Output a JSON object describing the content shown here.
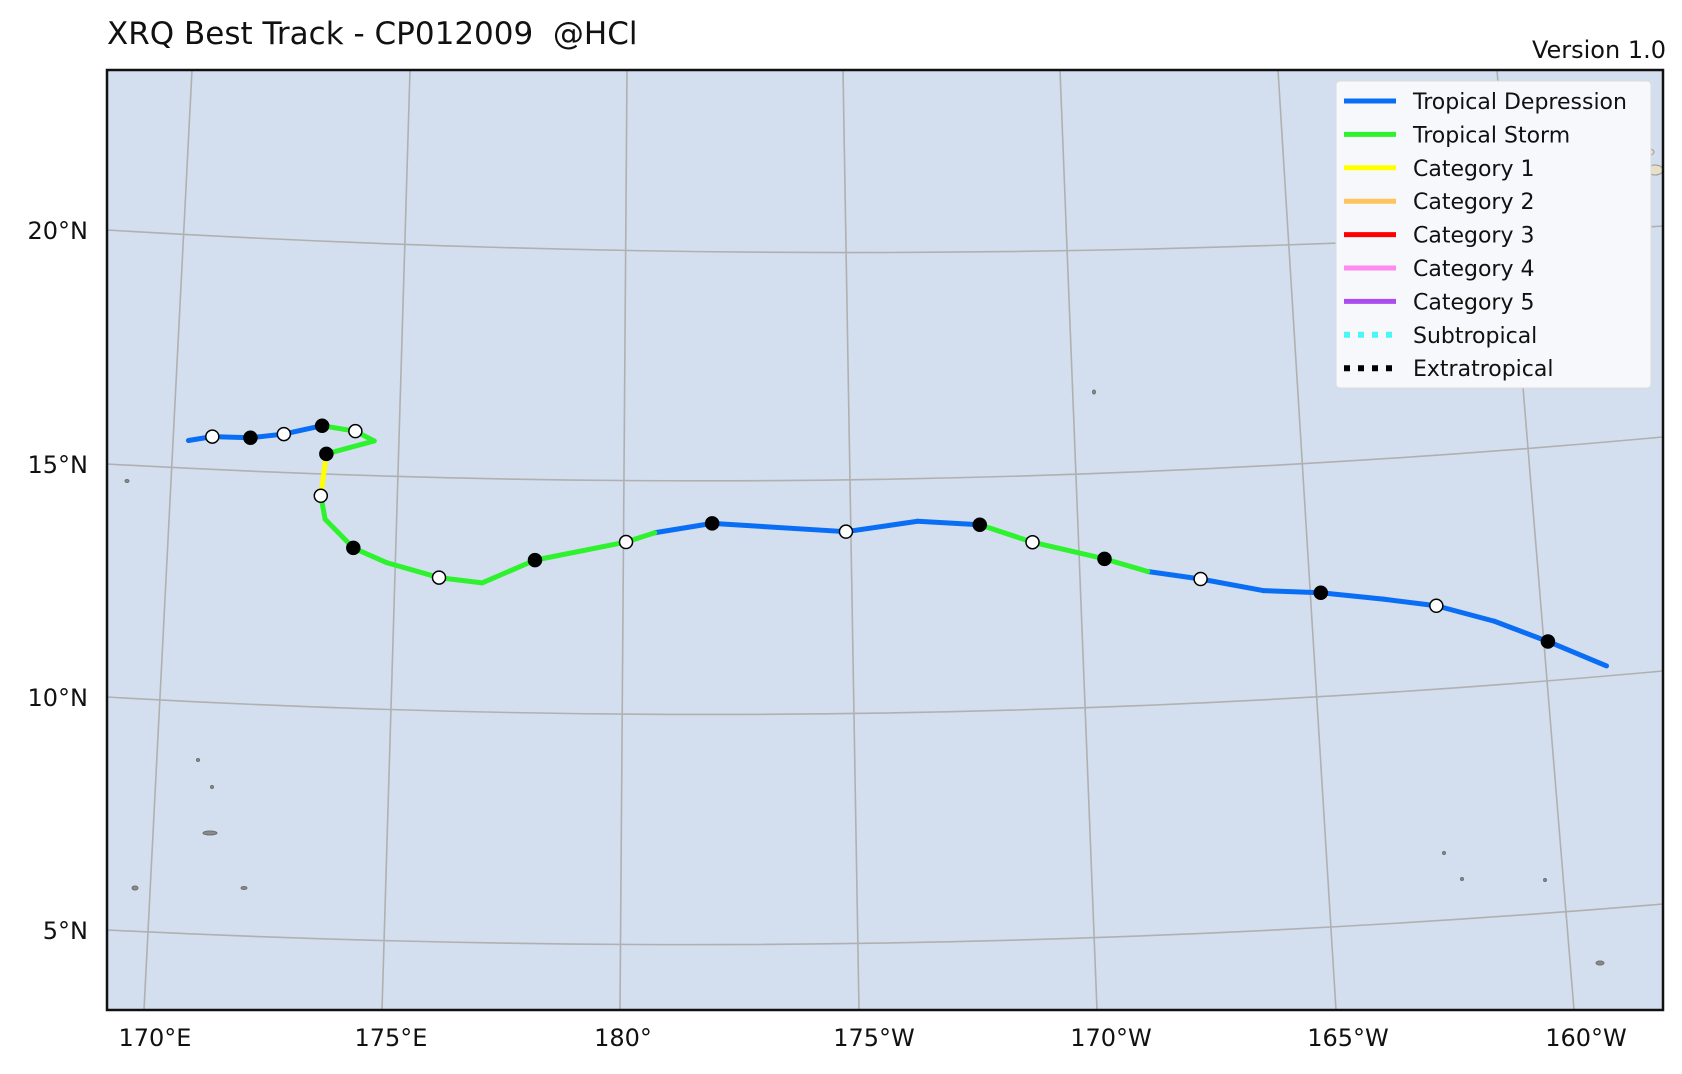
{
  "title": "XRQ Best Track - CP012009  @HCl",
  "version": "Version 1.0",
  "colors": {
    "ocean": "#d3deef",
    "grid": "#b0b0b0",
    "legend_bg": "#f7f8fb",
    "Tropical Depression": "#0a6ef5",
    "Tropical Storm": "#2ef22e",
    "Category 1": "#ffff00",
    "Category 2": "#ffc45c",
    "Category 3": "#ff0000",
    "Category 4": "#ff8aef",
    "Category 5": "#ab4cf0",
    "Subtropical": "#4af6f6",
    "Extratropical": "#000000"
  },
  "axes": {
    "lat_labels": [
      "20°N",
      "15°N",
      "10°N",
      "5°N"
    ],
    "lon_labels": [
      "170°E",
      "175°E",
      "180°",
      "175°W",
      "170°W",
      "165°W",
      "160°W"
    ]
  },
  "legend": [
    {
      "label": "Tropical Depression",
      "style": "solid"
    },
    {
      "label": "Tropical Storm",
      "style": "solid"
    },
    {
      "label": "Category 1",
      "style": "solid"
    },
    {
      "label": "Category 2",
      "style": "solid"
    },
    {
      "label": "Category 3",
      "style": "solid"
    },
    {
      "label": "Category 4",
      "style": "solid"
    },
    {
      "label": "Category 5",
      "style": "solid"
    },
    {
      "label": "Subtropical",
      "style": "dotted"
    },
    {
      "label": "Extratropical",
      "style": "dotted"
    }
  ],
  "chart_data": {
    "type": "track",
    "storm": "CP012009",
    "track": [
      {
        "lon": -159.7,
        "lat": 10.4,
        "status": "Tropical Depression"
      },
      {
        "lon": -160.9,
        "lat": 11.0,
        "status": "Tropical Depression",
        "marker": "filled"
      },
      {
        "lon": -162.0,
        "lat": 11.5,
        "status": "Tropical Depression"
      },
      {
        "lon": -163.2,
        "lat": 11.9,
        "status": "Tropical Depression",
        "marker": "open"
      },
      {
        "lon": -164.3,
        "lat": 12.1,
        "status": "Tropical Depression"
      },
      {
        "lon": -165.6,
        "lat": 12.3,
        "status": "Tropical Depression",
        "marker": "filled"
      },
      {
        "lon": -166.8,
        "lat": 12.4,
        "status": "Tropical Depression"
      },
      {
        "lon": -168.1,
        "lat": 12.7,
        "status": "Tropical Depression",
        "marker": "open"
      },
      {
        "lon": -169.2,
        "lat": 12.9,
        "status": "Tropical Depression"
      },
      {
        "lon": -170.1,
        "lat": 13.2,
        "status": "Tropical Storm",
        "marker": "filled"
      },
      {
        "lon": -171.6,
        "lat": 13.6,
        "status": "Tropical Storm",
        "marker": "open"
      },
      {
        "lon": -172.7,
        "lat": 14.0,
        "status": "Tropical Storm",
        "marker": "filled"
      },
      {
        "lon": -174.0,
        "lat": 14.1,
        "status": "Tropical Depression"
      },
      {
        "lon": -175.5,
        "lat": 13.9,
        "status": "Tropical Depression",
        "marker": "open"
      },
      {
        "lon": -178.3,
        "lat": 14.1,
        "status": "Tropical Depression",
        "marker": "filled"
      },
      {
        "lon": -179.5,
        "lat": 13.9,
        "status": "Tropical Depression"
      },
      {
        "lon": -180.1,
        "lat": 13.7,
        "status": "Tropical Storm",
        "marker": "open"
      },
      {
        "lon": -182.0,
        "lat": 13.3,
        "status": "Tropical Storm",
        "marker": "filled"
      },
      {
        "lon": -183.1,
        "lat": 12.8,
        "status": "Tropical Storm"
      },
      {
        "lon": -184.0,
        "lat": 12.9,
        "status": "Tropical Storm",
        "marker": "open"
      },
      {
        "lon": -185.1,
        "lat": 13.2,
        "status": "Tropical Storm"
      },
      {
        "lon": -185.8,
        "lat": 13.5,
        "status": "Tropical Storm",
        "marker": "filled"
      },
      {
        "lon": -186.4,
        "lat": 14.1,
        "status": "Tropical Storm"
      },
      {
        "lon": -186.5,
        "lat": 14.6,
        "status": "Tropical Storm",
        "marker": "open"
      },
      {
        "lon": -186.4,
        "lat": 15.5,
        "status": "Category 1",
        "marker": "filled"
      },
      {
        "lon": -185.4,
        "lat": 15.8,
        "status": "Tropical Storm"
      },
      {
        "lon": -185.8,
        "lat": 16.0,
        "status": "Tropical Storm",
        "marker": "open"
      },
      {
        "lon": -186.5,
        "lat": 16.1,
        "status": "Tropical Storm",
        "marker": "filled"
      },
      {
        "lon": -187.3,
        "lat": 15.9,
        "status": "Tropical Depression",
        "marker": "open"
      },
      {
        "lon": -188.0,
        "lat": 15.8,
        "status": "Tropical Depression",
        "marker": "filled"
      },
      {
        "lon": -188.8,
        "lat": 15.8,
        "status": "Tropical Depression",
        "marker": "open"
      },
      {
        "lon": -189.3,
        "lat": 15.7,
        "status": "Tropical Depression"
      }
    ]
  }
}
